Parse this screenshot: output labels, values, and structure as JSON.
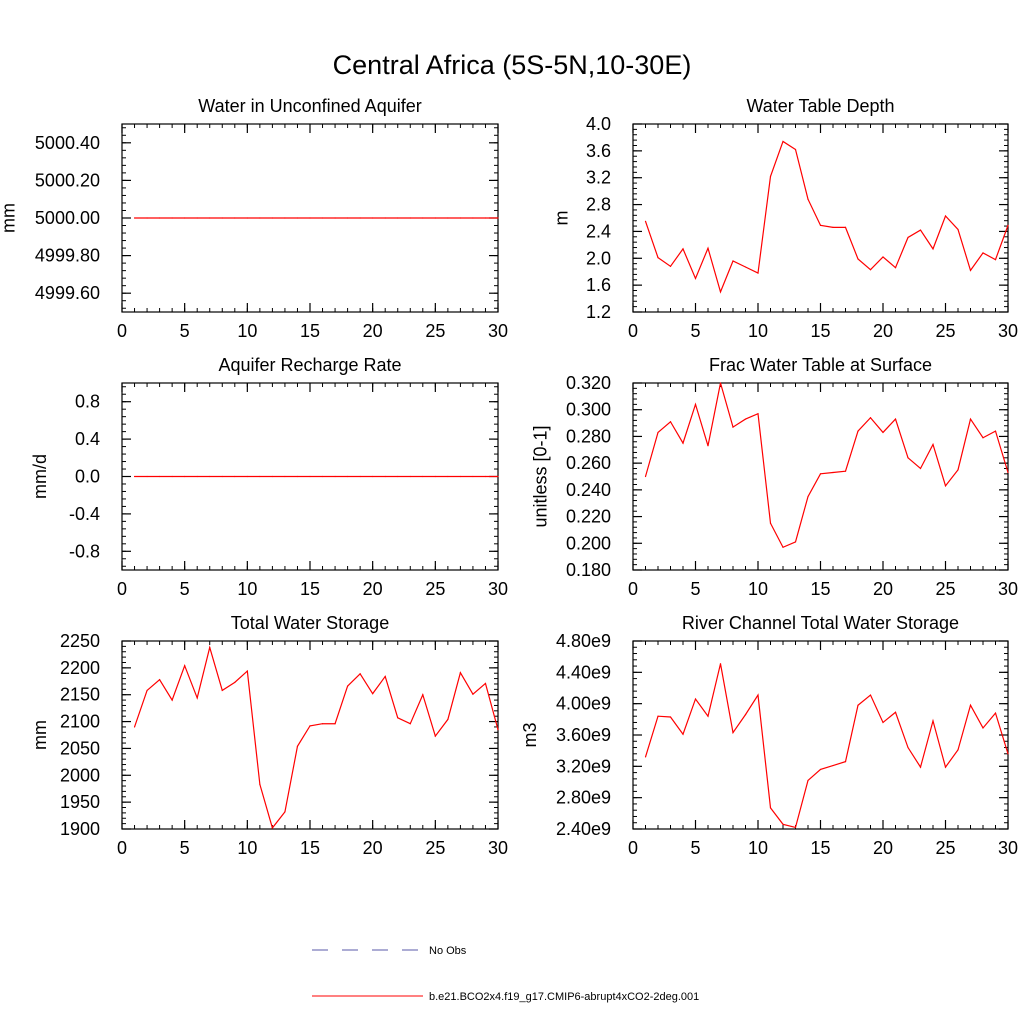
{
  "page": {
    "title": "Central Africa (5S-5N,10-30E)"
  },
  "chart_data": [
    {
      "type": "line",
      "title": "Water in Unconfined Aquifer",
      "ylabel": "mm",
      "xlim": [
        0,
        30
      ],
      "xticks": [
        0,
        5,
        10,
        15,
        20,
        25,
        30
      ],
      "xtick_labels": [
        "0",
        "5",
        "10",
        "15",
        "20",
        "25",
        "30"
      ],
      "ylim": [
        4999.5,
        5000.5
      ],
      "yticks": [
        4999.6,
        4999.8,
        5000.0,
        5000.2,
        5000.4
      ],
      "ytick_labels": [
        "4999.60",
        "4999.80",
        "5000.00",
        "5000.20",
        "5000.40"
      ],
      "series": [
        {
          "color": "#ff0000",
          "x": [
            1,
            2,
            3,
            4,
            5,
            6,
            7,
            8,
            9,
            10,
            11,
            12,
            13,
            14,
            15,
            16,
            17,
            18,
            19,
            20,
            21,
            22,
            23,
            24,
            25,
            26,
            27,
            28,
            29,
            30
          ],
          "values": [
            5000,
            5000,
            5000,
            5000,
            5000,
            5000,
            5000,
            5000,
            5000,
            5000,
            5000,
            5000,
            5000,
            5000,
            5000,
            5000,
            5000,
            5000,
            5000,
            5000,
            5000,
            5000,
            5000,
            5000,
            5000,
            5000,
            5000,
            5000,
            5000,
            5000
          ]
        }
      ]
    },
    {
      "type": "line",
      "title": "Water Table Depth",
      "ylabel": "m",
      "xlim": [
        0,
        30
      ],
      "xticks": [
        0,
        5,
        10,
        15,
        20,
        25,
        30
      ],
      "xtick_labels": [
        "0",
        "5",
        "10",
        "15",
        "20",
        "25",
        "30"
      ],
      "ylim": [
        1.2,
        4.0
      ],
      "yticks": [
        1.2,
        1.6,
        2.0,
        2.4,
        2.8,
        3.2,
        3.6,
        4.0
      ],
      "ytick_labels": [
        "1.2",
        "1.6",
        "2.0",
        "2.4",
        "2.8",
        "3.2",
        "3.6",
        "4.0"
      ],
      "series": [
        {
          "color": "#ff0000",
          "x": [
            1,
            2,
            3,
            4,
            5,
            6,
            7,
            8,
            9,
            10,
            11,
            12,
            13,
            14,
            15,
            16,
            17,
            18,
            19,
            20,
            21,
            22,
            23,
            24,
            25,
            26,
            27,
            28,
            29,
            30
          ],
          "values": [
            2.55,
            2.01,
            1.88,
            2.14,
            1.7,
            2.15,
            1.5,
            1.96,
            1.87,
            1.78,
            3.22,
            3.74,
            3.62,
            2.88,
            2.49,
            2.46,
            2.46,
            1.99,
            1.83,
            2.02,
            1.86,
            2.31,
            2.42,
            2.14,
            2.63,
            2.43,
            1.82,
            2.08,
            1.98,
            2.49
          ]
        }
      ]
    },
    {
      "type": "line",
      "title": "Aquifer Recharge Rate",
      "ylabel": "mm/d",
      "xlim": [
        0,
        30
      ],
      "xticks": [
        0,
        5,
        10,
        15,
        20,
        25,
        30
      ],
      "xtick_labels": [
        "0",
        "5",
        "10",
        "15",
        "20",
        "25",
        "30"
      ],
      "ylim": [
        -1.0,
        1.0
      ],
      "yticks": [
        -0.8,
        -0.4,
        0.0,
        0.4,
        0.8
      ],
      "ytick_labels": [
        "-0.8",
        "-0.4",
        "0.0",
        "0.4",
        "0.8"
      ],
      "series": [
        {
          "color": "#ff0000",
          "x": [
            1,
            2,
            3,
            4,
            5,
            6,
            7,
            8,
            9,
            10,
            11,
            12,
            13,
            14,
            15,
            16,
            17,
            18,
            19,
            20,
            21,
            22,
            23,
            24,
            25,
            26,
            27,
            28,
            29,
            30
          ],
          "values": [
            0,
            0,
            0,
            0,
            0,
            0,
            0,
            0,
            0,
            0,
            0,
            0,
            0,
            0,
            0,
            0,
            0,
            0,
            0,
            0,
            0,
            0,
            0,
            0,
            0,
            0,
            0,
            0,
            0,
            0
          ]
        }
      ]
    },
    {
      "type": "line",
      "title": "Frac Water Table at Surface",
      "ylabel": "unitless [0-1]",
      "xlim": [
        0,
        30
      ],
      "xticks": [
        0,
        5,
        10,
        15,
        20,
        25,
        30
      ],
      "xtick_labels": [
        "0",
        "5",
        "10",
        "15",
        "20",
        "25",
        "30"
      ],
      "ylim": [
        0.18,
        0.32
      ],
      "yticks": [
        0.18,
        0.2,
        0.22,
        0.24,
        0.26,
        0.28,
        0.3,
        0.32
      ],
      "ytick_labels": [
        "0.180",
        "0.200",
        "0.220",
        "0.240",
        "0.260",
        "0.280",
        "0.300",
        "0.320"
      ],
      "series": [
        {
          "color": "#ff0000",
          "x": [
            1,
            2,
            3,
            4,
            5,
            6,
            7,
            8,
            9,
            10,
            11,
            12,
            13,
            14,
            15,
            16,
            17,
            18,
            19,
            20,
            21,
            22,
            23,
            24,
            25,
            26,
            27,
            28,
            29,
            30
          ],
          "values": [
            0.25,
            0.283,
            0.291,
            0.275,
            0.304,
            0.273,
            0.32,
            0.287,
            0.293,
            0.297,
            0.215,
            0.197,
            0.201,
            0.235,
            0.252,
            0.253,
            0.254,
            0.284,
            0.294,
            0.283,
            0.293,
            0.264,
            0.256,
            0.274,
            0.243,
            0.255,
            0.293,
            0.279,
            0.284,
            0.253
          ]
        }
      ]
    },
    {
      "type": "line",
      "title": "Total Water Storage",
      "ylabel": "mm",
      "xlim": [
        0,
        30
      ],
      "xticks": [
        0,
        5,
        10,
        15,
        20,
        25,
        30
      ],
      "xtick_labels": [
        "0",
        "5",
        "10",
        "15",
        "20",
        "25",
        "30"
      ],
      "ylim": [
        1900,
        2250
      ],
      "yticks": [
        1900,
        1950,
        2000,
        2050,
        2100,
        2150,
        2200,
        2250
      ],
      "ytick_labels": [
        "1900",
        "1950",
        "2000",
        "2050",
        "2100",
        "2150",
        "2200",
        "2250"
      ],
      "series": [
        {
          "color": "#ff0000",
          "x": [
            1,
            2,
            3,
            4,
            5,
            6,
            7,
            8,
            9,
            10,
            11,
            12,
            13,
            14,
            15,
            16,
            17,
            18,
            19,
            20,
            21,
            22,
            23,
            24,
            25,
            26,
            27,
            28,
            29,
            30
          ],
          "values": [
            2090,
            2158,
            2178,
            2140,
            2204,
            2144,
            2238,
            2158,
            2173,
            2194,
            1983,
            1902,
            1932,
            2054,
            2092,
            2096,
            2096,
            2166,
            2189,
            2152,
            2184,
            2107,
            2096,
            2150,
            2073,
            2104,
            2191,
            2151,
            2171,
            2085
          ]
        }
      ]
    },
    {
      "type": "line",
      "title": "River Channel Total Water Storage",
      "ylabel": "m3",
      "xlim": [
        0,
        30
      ],
      "xticks": [
        0,
        5,
        10,
        15,
        20,
        25,
        30
      ],
      "xtick_labels": [
        "0",
        "5",
        "10",
        "15",
        "20",
        "25",
        "30"
      ],
      "ylim": [
        2400000000.0,
        4800000000.0
      ],
      "yticks": [
        2400000000.0,
        2800000000.0,
        3200000000.0,
        3600000000.0,
        4000000000.0,
        4400000000.0,
        4800000000.0
      ],
      "ytick_labels": [
        "2.40e9",
        "2.80e9",
        "3.20e9",
        "3.60e9",
        "4.00e9",
        "4.40e9",
        "4.80e9"
      ],
      "series": [
        {
          "color": "#ff0000",
          "x": [
            1,
            2,
            3,
            4,
            5,
            6,
            7,
            8,
            9,
            10,
            11,
            12,
            13,
            14,
            15,
            16,
            17,
            18,
            19,
            20,
            21,
            22,
            23,
            24,
            25,
            26,
            27,
            28,
            29,
            30
          ],
          "values": [
            3320000000.0,
            3840000000.0,
            3830000000.0,
            3610000000.0,
            4060000000.0,
            3840000000.0,
            4510000000.0,
            3630000000.0,
            3860000000.0,
            4110000000.0,
            2670000000.0,
            2460000000.0,
            2420000000.0,
            3020000000.0,
            3160000000.0,
            3210000000.0,
            3260000000.0,
            3980000000.0,
            4110000000.0,
            3760000000.0,
            3890000000.0,
            3440000000.0,
            3190000000.0,
            3780000000.0,
            3190000000.0,
            3410000000.0,
            3980000000.0,
            3690000000.0,
            3880000000.0,
            3360000000.0
          ]
        }
      ]
    }
  ],
  "legend": {
    "items": [
      {
        "label": "No Obs",
        "color": "#5a5aa8",
        "dash": true
      },
      {
        "label": "b.e21.BCO2x4.f19_g17.CMIP6-abrupt4xCO2-2deg.001",
        "color": "#ff0000",
        "dash": false
      }
    ]
  }
}
